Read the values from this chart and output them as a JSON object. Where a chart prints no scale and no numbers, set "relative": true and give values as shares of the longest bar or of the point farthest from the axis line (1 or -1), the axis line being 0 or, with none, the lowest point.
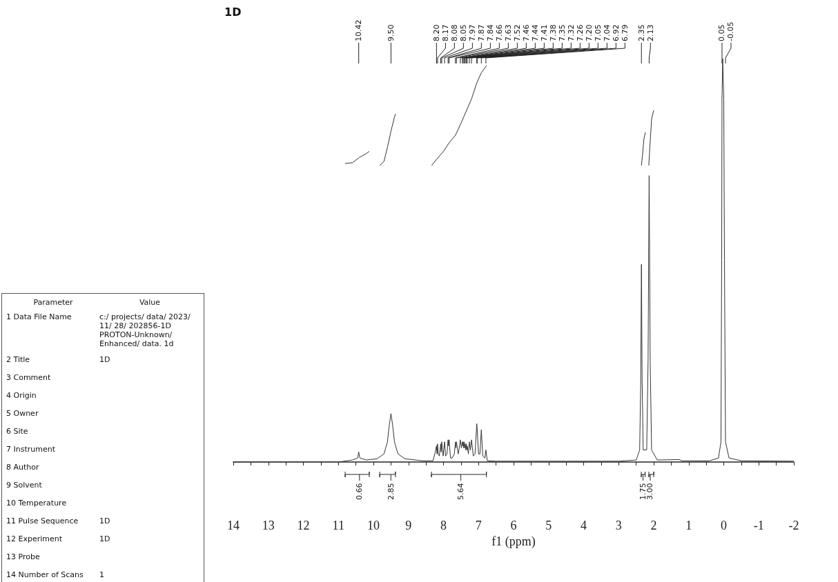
{
  "chart_data": [
    {
      "type": "other",
      "annotations": [
        "Parameter",
        "Value"
      ],
      "categories": [
        "1 Data File Name",
        "2 Title",
        "3 Comment",
        "4 Origin",
        "5 Owner",
        "6 Site",
        "7 Instrument",
        "8 Author",
        "9 Solvent",
        "10 Temperature",
        "11 Pulse Sequence",
        "12 Experiment",
        "13 Probe",
        "14 Number of Scans"
      ],
      "value_labels": [
        "c:/ projects/ data/ 2023/ 11/ 28/ 202856-1D PROTON-Unknown/ Enhanced/ data. 1d",
        "1D",
        null,
        null,
        null,
        null,
        null,
        null,
        null,
        null,
        "1D",
        "1D",
        null,
        "1"
      ]
    },
    {
      "type": "line",
      "title": "1D",
      "xlabel": "f1 (ppm)",
      "relative": true,
      "tick_labels": "x",
      "grid": false,
      "marker": "none",
      "xlim": [
        14,
        -2
      ],
      "xticks": [
        14,
        {
          "value": 13.5,
          "label": null
        },
        13,
        {
          "value": 12.5,
          "label": null
        },
        12,
        {
          "value": 11.5,
          "label": null
        },
        11,
        {
          "value": 10.5,
          "label": null
        },
        10,
        {
          "value": 9.5,
          "label": null
        },
        9,
        {
          "value": 8.5,
          "label": null
        },
        8,
        {
          "value": 7.5,
          "label": null
        },
        7,
        {
          "value": 6.5,
          "label": null
        },
        6,
        {
          "value": 5.5,
          "label": null
        },
        5,
        {
          "value": 4.5,
          "label": null
        },
        4,
        {
          "value": 3.5,
          "label": null
        },
        3,
        {
          "value": 2.5,
          "label": null
        },
        2,
        {
          "value": 1.5,
          "label": null
        },
        1,
        {
          "value": 0.5,
          "label": null
        },
        0,
        {
          "value": -0.5,
          "label": null
        },
        -1,
        {
          "value": -1.5,
          "label": null
        },
        -2
      ],
      "series": [
        {
          "color": "#333333",
          "x": [
            14,
            11,
            10.6,
            10.45,
            10.42,
            10.39,
            10.2,
            9.9,
            9.7,
            9.6,
            9.55,
            9.5,
            9.45,
            9.4,
            9.3,
            9.1,
            8.6,
            8.3,
            8.22,
            8.2,
            8.185,
            8.17,
            8.15,
            8.12,
            8.08,
            8.065,
            8.05,
            8.01,
            7.97,
            7.94,
            7.9,
            7.87,
            7.855,
            7.84,
            7.8,
            7.75,
            7.69,
            7.66,
            7.645,
            7.63,
            7.58,
            7.55,
            7.52,
            7.49,
            7.46,
            7.45,
            7.44,
            7.425,
            7.41,
            7.395,
            7.38,
            7.365,
            7.35,
            7.335,
            7.32,
            7.29,
            7.26,
            7.23,
            7.2,
            7.15,
            7.1,
            7.05,
            7.045,
            7.0,
            6.96,
            6.92,
            6.88,
            6.82,
            6.79,
            6.75,
            6.5,
            5,
            3,
            2.5,
            2.4,
            2.37,
            2.35,
            2.33,
            2.3,
            2.2,
            2.16,
            2.13,
            2.1,
            2.06,
            1.9,
            1.27,
            1.2,
            0.4,
            0.15,
            0.08,
            0.06,
            0.05,
            0.03,
            0.0,
            -0.02,
            -0.05,
            -0.15,
            -0.5,
            -2
          ],
          "values": [
            0,
            0,
            0.005,
            0.01,
            0.025,
            0.01,
            0.005,
            0.008,
            0.02,
            0.05,
            0.09,
            0.12,
            0.09,
            0.05,
            0.02,
            0.008,
            0.003,
            0.003,
            0.03,
            0.04,
            0.02,
            0.045,
            0.02,
            0.015,
            0.045,
            0.025,
            0.05,
            0.015,
            0.05,
            0.015,
            0.02,
            0.055,
            0.04,
            0.055,
            0.01,
            0.01,
            0.02,
            0.05,
            0.035,
            0.05,
            0.02,
            0.035,
            0.055,
            0.035,
            0.05,
            0.04,
            0.05,
            0.035,
            0.05,
            0.035,
            0.045,
            0.03,
            0.045,
            0.03,
            0.04,
            0.02,
            0.05,
            0.03,
            0.055,
            0.015,
            0.02,
            0.095,
            0.09,
            0.02,
            0.02,
            0.08,
            0.015,
            0.01,
            0.03,
            0.003,
            0.002,
            0.002,
            0.002,
            0.005,
            0.03,
            0.2,
            0.49,
            0.2,
            0.03,
            0.03,
            0.25,
            0.71,
            0.25,
            0.03,
            0.005,
            0.006,
            0.003,
            0.003,
            0.01,
            0.05,
            0.5,
            0.9,
            1.0,
            0.9,
            0.5,
            0.05,
            0.01,
            0.003,
            0.002
          ]
        },
        {
          "color": "#333333",
          "x": [
            10.81,
            10.6,
            10.4,
            10.2,
            10.12
          ],
          "values": [
            0.74,
            0.742,
            0.755,
            0.765,
            0.77
          ]
        },
        {
          "color": "#333333",
          "x": [
            9.82,
            9.7,
            9.6,
            9.5,
            9.4,
            9.37
          ],
          "values": [
            0.735,
            0.745,
            0.78,
            0.82,
            0.855,
            0.863
          ]
        },
        {
          "color": "#333333",
          "x": [
            8.34,
            8.2,
            8.0,
            7.85,
            7.66,
            7.5,
            7.35,
            7.2,
            7.05,
            6.92,
            6.77
          ],
          "values": [
            0.735,
            0.75,
            0.77,
            0.79,
            0.81,
            0.84,
            0.87,
            0.9,
            0.94,
            0.965,
            0.983
          ]
        },
        {
          "color": "#333333",
          "x": [
            2.35,
            2.32,
            2.28,
            2.24
          ],
          "values": [
            0.735,
            0.76,
            0.8,
            0.817
          ]
        },
        {
          "color": "#333333",
          "x": [
            2.14,
            2.11,
            2.06,
            2.0
          ],
          "values": [
            0.735,
            0.78,
            0.85,
            0.872
          ]
        }
      ],
      "annotations": [
        {
          "text": "10.42",
          "x": 10.42
        },
        {
          "text": "9.50",
          "x": 9.5
        },
        {
          "text": "8.20",
          "x": 8.2
        },
        {
          "text": "8.17",
          "x": 8.17
        },
        {
          "text": "8.08",
          "x": 8.08
        },
        {
          "text": "8.05",
          "x": 8.05
        },
        {
          "text": "7.97",
          "x": 7.97
        },
        {
          "text": "7.87",
          "x": 7.87
        },
        {
          "text": "7.84",
          "x": 7.84
        },
        {
          "text": "7.66",
          "x": 7.66
        },
        {
          "text": "7.63",
          "x": 7.63
        },
        {
          "text": "7.52",
          "x": 7.52
        },
        {
          "text": "7.46",
          "x": 7.46
        },
        {
          "text": "7.44",
          "x": 7.44
        },
        {
          "text": "7.41",
          "x": 7.41
        },
        {
          "text": "7.38",
          "x": 7.38
        },
        {
          "text": "7.35",
          "x": 7.35
        },
        {
          "text": "7.32",
          "x": 7.32
        },
        {
          "text": "7.26",
          "x": 7.26
        },
        {
          "text": "7.20",
          "x": 7.2
        },
        {
          "text": "7.05",
          "x": 7.05
        },
        {
          "text": "7.04",
          "x": 7.04
        },
        {
          "text": "6.92",
          "x": 6.92
        },
        {
          "text": "6.79",
          "x": 6.79
        },
        {
          "text": "2.35",
          "x": 2.35
        },
        {
          "text": "2.13",
          "x": 2.13
        },
        {
          "text": "0.05",
          "x": 0.05
        },
        {
          "text": "-0.05",
          "x": -0.05
        },
        {
          "text": "0.66",
          "x": 10.4
        },
        {
          "text": "2.85",
          "x": 9.5
        },
        {
          "text": "5.64",
          "x": 7.5
        },
        {
          "text": "1.75",
          "x": 2.3
        },
        {
          "text": "3.00",
          "x": 2.1
        }
      ]
    }
  ]
}
